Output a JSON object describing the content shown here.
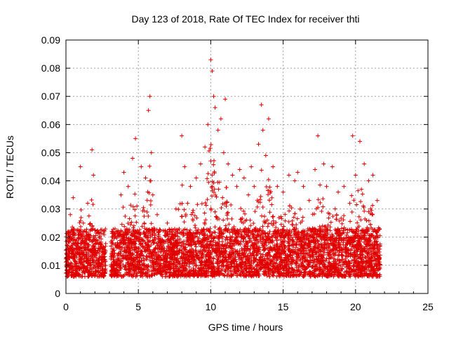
{
  "chart_data": {
    "type": "scatter",
    "title": "Day 123 of 2018, Rate Of TEC Index for receiver thti",
    "xlabel": "GPS time / hours",
    "ylabel": "ROTI / TECUs",
    "xlim": [
      0,
      25
    ],
    "ylim": [
      0,
      0.09
    ],
    "xticks": [
      "0",
      "5",
      "10",
      "15",
      "20",
      "25"
    ],
    "yticks": [
      "0",
      "0.01",
      "0.02",
      "0.03",
      "0.04",
      "0.05",
      "0.06",
      "0.07",
      "0.08",
      "0.09"
    ],
    "grid": true,
    "marker": "plus",
    "color": "#e00000",
    "data_x_range": [
      0,
      21.7
    ],
    "series": [
      {
        "name": "ROTI",
        "x": [
          0.1,
          0.3,
          0.5,
          0.8,
          1.0,
          1.2,
          1.5,
          1.8,
          1.9,
          2.0,
          2.2,
          2.5,
          2.7,
          3.2,
          3.5,
          3.8,
          4.0,
          4.3,
          4.6,
          4.8,
          4.9,
          5.0,
          5.2,
          5.5,
          5.7,
          5.8,
          5.9,
          6.0,
          6.3,
          6.6,
          7.0,
          7.3,
          7.6,
          8.0,
          8.2,
          8.4,
          8.6,
          9.0,
          9.3,
          9.6,
          9.8,
          10.0,
          10.1,
          10.2,
          10.3,
          10.5,
          10.7,
          10.9,
          11.0,
          11.2,
          11.5,
          11.8,
          12.0,
          12.3,
          12.6,
          12.8,
          13.0,
          13.3,
          13.5,
          13.6,
          13.8,
          14.0,
          14.3,
          14.6,
          15.0,
          15.4,
          15.8,
          16.0,
          16.4,
          16.8,
          17.2,
          17.4,
          17.8,
          18.0,
          18.4,
          18.8,
          19.2,
          19.6,
          19.8,
          20.0,
          20.3,
          20.6,
          20.9,
          21.2,
          21.5
        ],
        "y": [
          0.012,
          0.028,
          0.034,
          0.018,
          0.045,
          0.025,
          0.032,
          0.051,
          0.042,
          0.016,
          0.012,
          0.011,
          0.01,
          0.015,
          0.022,
          0.035,
          0.043,
          0.038,
          0.048,
          0.055,
          0.031,
          0.02,
          0.045,
          0.041,
          0.065,
          0.07,
          0.05,
          0.035,
          0.028,
          0.019,
          0.025,
          0.021,
          0.03,
          0.056,
          0.045,
          0.032,
          0.038,
          0.041,
          0.046,
          0.052,
          0.06,
          0.083,
          0.079,
          0.07,
          0.066,
          0.058,
          0.062,
          0.05,
          0.069,
          0.046,
          0.042,
          0.038,
          0.044,
          0.041,
          0.035,
          0.045,
          0.038,
          0.053,
          0.067,
          0.058,
          0.049,
          0.062,
          0.045,
          0.038,
          0.036,
          0.042,
          0.04,
          0.043,
          0.038,
          0.033,
          0.044,
          0.056,
          0.046,
          0.038,
          0.045,
          0.036,
          0.038,
          0.032,
          0.056,
          0.042,
          0.054,
          0.046,
          0.04,
          0.042,
          0.033
        ]
      }
    ]
  }
}
